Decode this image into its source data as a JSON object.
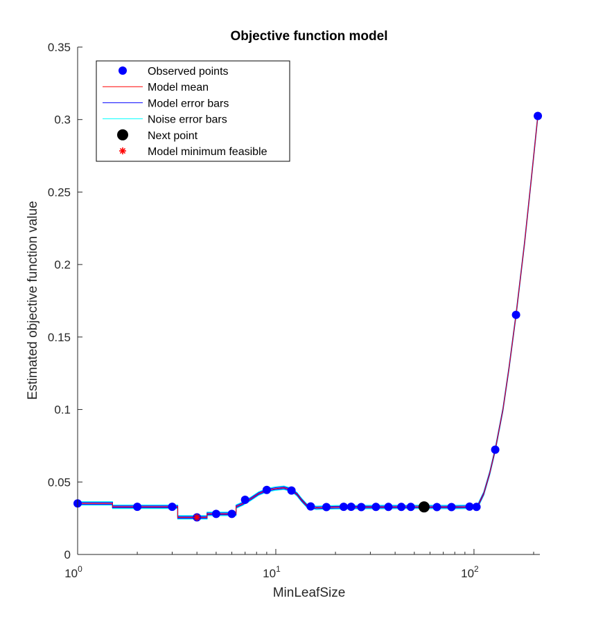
{
  "chart_data": {
    "type": "line",
    "title": "Objective function model",
    "xlabel": "MinLeafSize",
    "ylabel": "Estimated objective function value",
    "x_scale": "log",
    "xlim": [
      1,
      215
    ],
    "ylim": [
      0,
      0.35
    ],
    "x_ticks": [
      {
        "value": 1,
        "base": "10",
        "exp": "0"
      },
      {
        "value": 10,
        "base": "10",
        "exp": "1"
      },
      {
        "value": 100,
        "base": "10",
        "exp": "2"
      }
    ],
    "y_ticks": [
      {
        "value": 0,
        "label": "0"
      },
      {
        "value": 0.05,
        "label": "0.05"
      },
      {
        "value": 0.1,
        "label": "0.1"
      },
      {
        "value": 0.15,
        "label": "0.15"
      },
      {
        "value": 0.2,
        "label": "0.2"
      },
      {
        "value": 0.25,
        "label": "0.25"
      },
      {
        "value": 0.3,
        "label": "0.3"
      },
      {
        "value": 0.35,
        "label": "0.35"
      }
    ],
    "legend_position": "top-left",
    "legend": [
      {
        "label": "Observed points",
        "marker": "dot",
        "color": "#0000FF"
      },
      {
        "label": "Model mean",
        "marker": "line",
        "color": "#FF0000"
      },
      {
        "label": "Model error bars",
        "marker": "line",
        "color": "#0000FF"
      },
      {
        "label": "Noise error bars",
        "marker": "line",
        "color": "#00FFFF"
      },
      {
        "label": "Next point",
        "marker": "bigdot",
        "color": "#000000"
      },
      {
        "label": "Model minimum feasible",
        "marker": "star",
        "color": "#FF0000"
      }
    ],
    "observed_points": [
      {
        "x": 1,
        "y": 0.0352
      },
      {
        "x": 2,
        "y": 0.0329
      },
      {
        "x": 3,
        "y": 0.0329
      },
      {
        "x": 4,
        "y": 0.0256
      },
      {
        "x": 5,
        "y": 0.028
      },
      {
        "x": 6,
        "y": 0.028
      },
      {
        "x": 7,
        "y": 0.0377
      },
      {
        "x": 9,
        "y": 0.0445
      },
      {
        "x": 12,
        "y": 0.0441
      },
      {
        "x": 15,
        "y": 0.0331
      },
      {
        "x": 18,
        "y": 0.0327
      },
      {
        "x": 22,
        "y": 0.0329
      },
      {
        "x": 24,
        "y": 0.0329
      },
      {
        "x": 27,
        "y": 0.0327
      },
      {
        "x": 32,
        "y": 0.0328
      },
      {
        "x": 37,
        "y": 0.0328
      },
      {
        "x": 43,
        "y": 0.0328
      },
      {
        "x": 48,
        "y": 0.0328
      },
      {
        "x": 65,
        "y": 0.0327
      },
      {
        "x": 77,
        "y": 0.0327
      },
      {
        "x": 95,
        "y": 0.033
      },
      {
        "x": 103,
        "y": 0.0328
      },
      {
        "x": 128,
        "y": 0.0723
      },
      {
        "x": 163,
        "y": 0.1653
      },
      {
        "x": 210,
        "y": 0.3025
      }
    ],
    "next_point": {
      "x": 56,
      "y": 0.0328
    },
    "model_minimum_feasible": {
      "x": 4,
      "y": 0.0256
    },
    "model_mean": [
      {
        "x": 1,
        "y": 0.0352
      },
      {
        "x": 1.5,
        "y": 0.0352
      },
      {
        "x": 1.5,
        "y": 0.0329
      },
      {
        "x": 3.2,
        "y": 0.0329
      },
      {
        "x": 3.2,
        "y": 0.0256
      },
      {
        "x": 4.5,
        "y": 0.0256
      },
      {
        "x": 4.5,
        "y": 0.028
      },
      {
        "x": 6.3,
        "y": 0.028
      },
      {
        "x": 6.3,
        "y": 0.033
      },
      {
        "x": 6.8,
        "y": 0.035
      },
      {
        "x": 7.5,
        "y": 0.0385
      },
      {
        "x": 8.2,
        "y": 0.042
      },
      {
        "x": 9,
        "y": 0.0443
      },
      {
        "x": 10,
        "y": 0.0455
      },
      {
        "x": 11,
        "y": 0.046
      },
      {
        "x": 12,
        "y": 0.0445
      },
      {
        "x": 12.8,
        "y": 0.0415
      },
      {
        "x": 13.5,
        "y": 0.0375
      },
      {
        "x": 14.5,
        "y": 0.033
      },
      {
        "x": 16,
        "y": 0.0322
      },
      {
        "x": 20,
        "y": 0.0326
      },
      {
        "x": 30,
        "y": 0.0327
      },
      {
        "x": 50,
        "y": 0.0328
      },
      {
        "x": 80,
        "y": 0.0327
      },
      {
        "x": 100,
        "y": 0.0329
      },
      {
        "x": 105,
        "y": 0.034
      },
      {
        "x": 112,
        "y": 0.042
      },
      {
        "x": 120,
        "y": 0.056
      },
      {
        "x": 128,
        "y": 0.0723
      },
      {
        "x": 140,
        "y": 0.1
      },
      {
        "x": 150,
        "y": 0.128
      },
      {
        "x": 163,
        "y": 0.1653
      },
      {
        "x": 180,
        "y": 0.215
      },
      {
        "x": 195,
        "y": 0.26
      },
      {
        "x": 210,
        "y": 0.3025
      }
    ]
  }
}
